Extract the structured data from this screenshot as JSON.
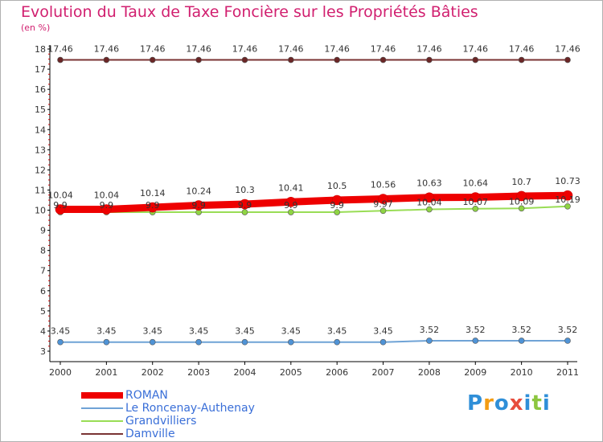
{
  "title": "Evolution du Taux de Taxe Foncière sur les Propriétés Bâties",
  "unit": "(en %)",
  "logo": {
    "text": "Proxiti",
    "letters": [
      "P",
      "r",
      "o",
      "x",
      "i",
      "t",
      "i"
    ],
    "colors": [
      "#2f8fd8",
      "#f39c12",
      "#2f8fd8",
      "#e74c3c",
      "#2f8fd8",
      "#8cc63f",
      "#2f8fd8"
    ]
  },
  "chart_data": {
    "type": "line",
    "title": "Evolution du Taux de Taxe Foncière sur les Propriétés Bâties",
    "xlabel": "",
    "ylabel": "(en %)",
    "ylim": [
      3,
      18
    ],
    "yticks": [
      "3",
      "4",
      "5",
      "6",
      "7",
      "8",
      "9",
      "10",
      "11",
      "12",
      "13",
      "14",
      "15",
      "16",
      "17",
      "18"
    ],
    "categories": [
      "2000",
      "2001",
      "2002",
      "2003",
      "2004",
      "2005",
      "2006",
      "2007",
      "2008",
      "2009",
      "2010",
      "2011"
    ],
    "series": [
      {
        "name": "ROMAN",
        "color": "#ee0000",
        "values": [
          10.04,
          10.04,
          10.14,
          10.24,
          10.3,
          10.41,
          10.5,
          10.56,
          10.63,
          10.64,
          10.7,
          10.73
        ],
        "labels": [
          "10.04",
          "10.04",
          "10.14",
          "10.24",
          "10.3",
          "10.41",
          "10.5",
          "10.56",
          "10.63",
          "10.64",
          "10.7",
          "10.73"
        ]
      },
      {
        "name": "Le Roncenay-Authenay",
        "color": "#6fa3d6",
        "values": [
          3.45,
          3.45,
          3.45,
          3.45,
          3.45,
          3.45,
          3.45,
          3.45,
          3.52,
          3.52,
          3.52,
          3.52
        ],
        "labels": [
          "3.45",
          "3.45",
          "3.45",
          "3.45",
          "3.45",
          "3.45",
          "3.45",
          "3.45",
          "3.52",
          "3.52",
          "3.52",
          "3.52"
        ]
      },
      {
        "name": "Grandvilliers",
        "color": "#99dd55",
        "values": [
          9.9,
          9.9,
          9.9,
          9.9,
          9.9,
          9.9,
          9.9,
          9.97,
          10.04,
          10.07,
          10.09,
          10.19
        ],
        "labels": [
          "9.9",
          "9.9",
          "9.9",
          "9.9",
          "9.9",
          "9.9",
          "9.9",
          "9.97",
          "10.04",
          "10.07",
          "10.09",
          "10.19"
        ]
      },
      {
        "name": "Damville",
        "color": "#7a3333",
        "values": [
          17.46,
          17.46,
          17.46,
          17.46,
          17.46,
          17.46,
          17.46,
          17.46,
          17.46,
          17.46,
          17.46,
          17.46
        ],
        "labels": [
          "17.46",
          "17.46",
          "17.46",
          "17.46",
          "17.46",
          "17.46",
          "17.46",
          "17.46",
          "17.46",
          "17.46",
          "17.46",
          "17.46"
        ]
      }
    ]
  }
}
